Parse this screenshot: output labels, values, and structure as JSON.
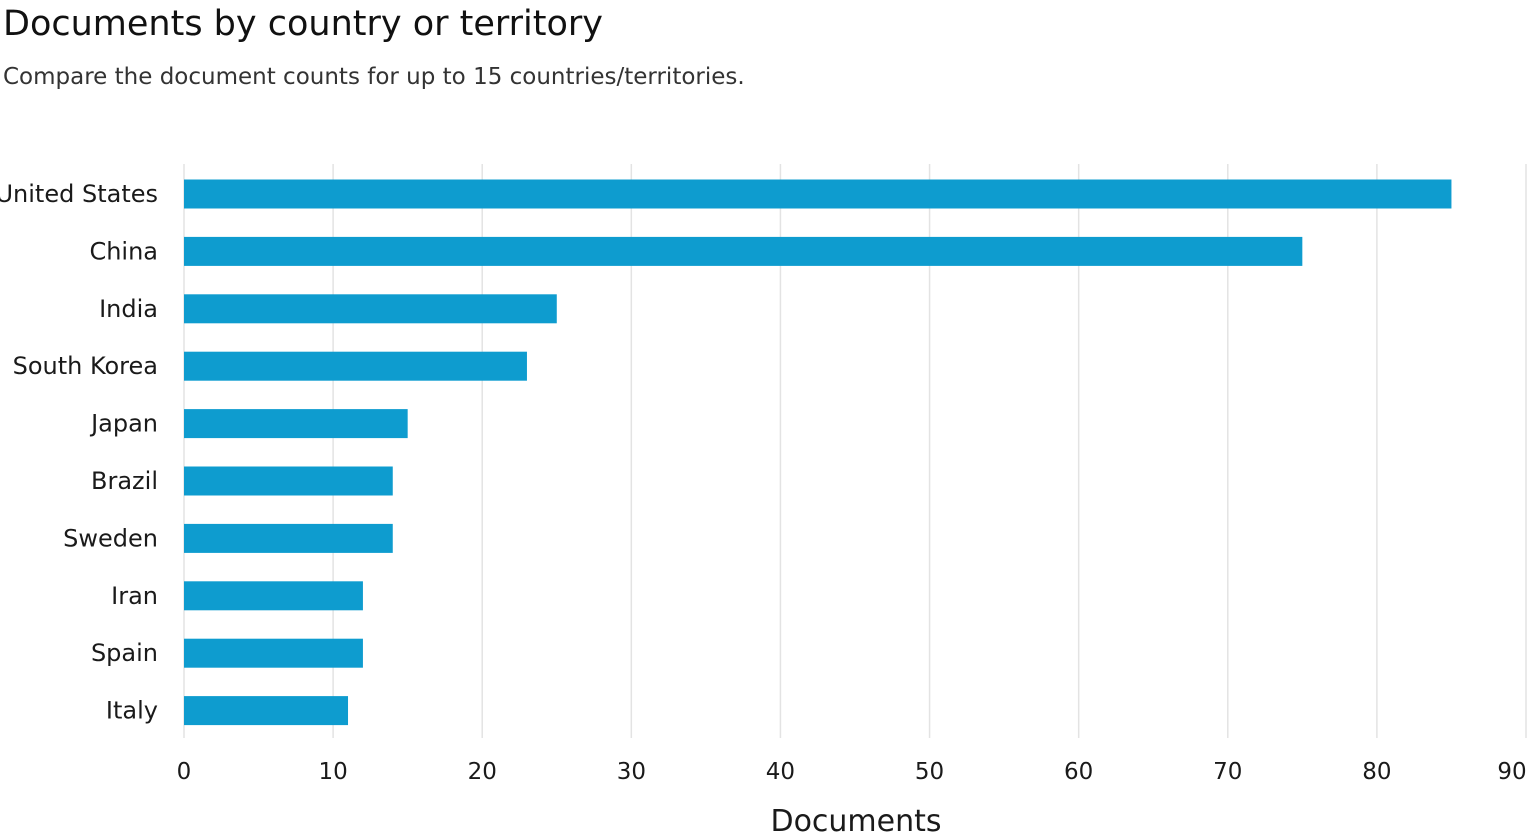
{
  "header": {
    "title": "Documents by country or territory",
    "subtitle": "Compare the document counts for up to 15 countries/territories."
  },
  "colors": {
    "bar": "#0e9ccf",
    "grid": "#e3e3e3",
    "text": "#1a1a1a"
  },
  "chart_data": {
    "type": "bar",
    "orientation": "horizontal",
    "title": "Documents by country or territory",
    "subtitle": "Compare the document counts for up to 15 countries/territories.",
    "xlabel": "Documents",
    "ylabel": "",
    "xlim": [
      0,
      90
    ],
    "xticks": [
      0,
      10,
      20,
      30,
      40,
      50,
      60,
      70,
      80,
      90
    ],
    "grid": true,
    "categories": [
      "United States",
      "China",
      "India",
      "South Korea",
      "Japan",
      "Brazil",
      "Sweden",
      "Iran",
      "Spain",
      "Italy"
    ],
    "values": [
      85,
      75,
      25,
      23,
      15,
      14,
      14,
      12,
      12,
      11
    ]
  }
}
